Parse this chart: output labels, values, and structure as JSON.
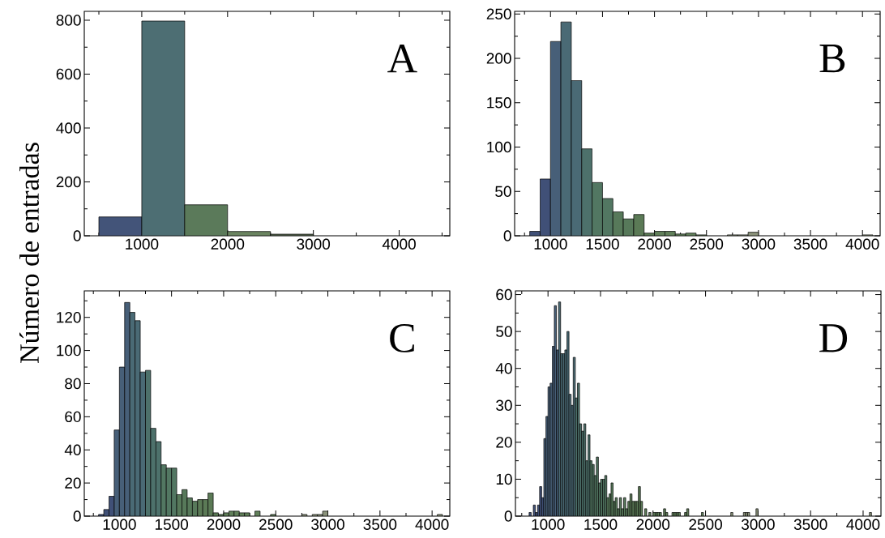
{
  "chart_data": [
    {
      "type": "histogram",
      "ylabel": "Número de entradas",
      "annotations": [
        "A"
      ],
      "bins": [
        500,
        1000,
        1500,
        2000,
        2500,
        3000,
        3500,
        4000,
        4500
      ],
      "values": [
        70,
        797,
        115,
        16,
        6,
        0,
        0,
        null
      ],
      "colors": [
        "#435479",
        "#4d6e73",
        "#5b7a5a",
        "#6a8460",
        "#55654d",
        "#8a927a",
        "#8a927a",
        "#8a927a"
      ],
      "xlim": [
        330,
        4590
      ],
      "ylim": [
        0,
        833
      ],
      "xticks": [
        {
          "value": 500,
          "label": null
        },
        1000,
        {
          "value": 1500,
          "label": null
        },
        2000,
        {
          "value": 2500,
          "label": null
        },
        3000,
        {
          "value": 3500,
          "label": null
        },
        4000,
        {
          "value": 4500,
          "label": null
        }
      ],
      "yticks": [
        0,
        {
          "value": 100,
          "label": null
        },
        200,
        {
          "value": 300,
          "label": null
        },
        400,
        {
          "value": 500,
          "label": null
        },
        600,
        {
          "value": 700,
          "label": null
        },
        800
      ]
    },
    {
      "type": "histogram",
      "annotations": [
        "B"
      ],
      "bins": [
        800,
        900,
        1000,
        1100,
        1200,
        1300,
        1400,
        1500,
        1600,
        1700,
        1800,
        1900,
        2000,
        2100,
        2200,
        2300,
        2400,
        2500,
        2600,
        2700,
        2800,
        2900,
        3000,
        3100,
        3200,
        3300,
        3400,
        3500,
        3600,
        3700,
        3800,
        3900,
        4000,
        4100
      ],
      "values": [
        5,
        64,
        219,
        241,
        175,
        98,
        60,
        42,
        27,
        19,
        24,
        3,
        5,
        5,
        2,
        3,
        1,
        0,
        0,
        1,
        1,
        4,
        0,
        0,
        0,
        0,
        0,
        0,
        0,
        0,
        0,
        0,
        1
      ],
      "colors": [
        "#405077",
        "#405077",
        "#475f78",
        "#4a6a75",
        "#4a6a75",
        "#4d716b",
        "#527762",
        "#527762",
        "#57795a",
        "#57795a",
        "#5b7a56",
        "#5b7a56",
        "#61805a",
        "#61805a",
        "#61805a",
        "#61805a",
        "#61805a",
        "#8a927a",
        "#8a927a",
        "#8a927a",
        "#8a927a",
        "#8a927a",
        "#8a927a",
        "#8a927a",
        "#8a927a",
        "#8a927a",
        "#8a927a",
        "#8a927a",
        "#8a927a",
        "#8a927a",
        "#8a927a",
        "#8a927a",
        "#8a927a"
      ],
      "xlim": [
        655,
        4170
      ],
      "ylim": [
        0,
        253
      ],
      "xticks": [
        {
          "value": 750,
          "label": null
        },
        1000,
        {
          "value": 1250,
          "label": null
        },
        1500,
        {
          "value": 1750,
          "label": null
        },
        2000,
        {
          "value": 2250,
          "label": null
        },
        2500,
        {
          "value": 2750,
          "label": null
        },
        3000,
        {
          "value": 3250,
          "label": null
        },
        3500,
        {
          "value": 3750,
          "label": null
        },
        4000
      ],
      "yticks": [
        0,
        {
          "value": 25,
          "label": null
        },
        50,
        {
          "value": 75,
          "label": null
        },
        100,
        {
          "value": 125,
          "label": null
        },
        150,
        {
          "value": 175,
          "label": null
        },
        200,
        {
          "value": 225,
          "label": null
        },
        250
      ]
    },
    {
      "type": "histogram",
      "annotations": [
        "C"
      ],
      "bins": [
        800,
        850,
        900,
        950,
        1000,
        1050,
        1100,
        1150,
        1200,
        1250,
        1300,
        1350,
        1400,
        1450,
        1500,
        1550,
        1600,
        1650,
        1700,
        1750,
        1800,
        1850,
        1900,
        1950,
        2000,
        2050,
        2100,
        2150,
        2200,
        2250,
        2300,
        2350,
        2400,
        2450,
        2500,
        2550,
        2600,
        2650,
        2700,
        2750,
        2800,
        2850,
        2900,
        2950,
        3000,
        3050,
        3100,
        3150,
        3200,
        3250,
        3300,
        3350,
        3400,
        3450,
        3500,
        3550,
        3600,
        3650,
        3700,
        3750,
        3800,
        3850,
        3900,
        3950,
        4000,
        4050,
        4100
      ],
      "values": [
        1,
        4,
        12,
        52,
        90,
        129,
        123,
        118,
        87,
        88,
        53,
        45,
        31,
        29,
        29,
        13,
        16,
        11,
        9,
        10,
        10,
        14,
        2,
        1,
        2,
        3,
        3,
        2,
        2,
        0,
        3,
        0,
        0,
        1,
        0,
        0,
        0,
        0,
        0,
        1,
        0,
        1,
        1,
        3,
        0,
        0,
        0,
        0,
        0,
        0,
        0,
        0,
        0,
        0,
        0,
        0,
        0,
        0,
        0,
        0,
        0,
        0,
        0,
        0,
        0,
        1
      ],
      "colors": [
        "#405077",
        "#405077",
        "#405077",
        "#475f78",
        "#475f78",
        "#475f78",
        "#4a6a75",
        "#4a6a75",
        "#4a6a75",
        "#4d716b",
        "#4d716b",
        "#4d716b",
        "#527762",
        "#527762",
        "#527762",
        "#57795a",
        "#57795a",
        "#57795a",
        "#57795a",
        "#5b7a56",
        "#5b7a56",
        "#5b7a56",
        "#5b7a56",
        "#5b7a56",
        "#61805a",
        "#61805a",
        "#61805a",
        "#61805a",
        "#61805a",
        "#61805a",
        "#61805a",
        "#61805a",
        "#61805a",
        "#61805a",
        "#8a927a",
        "#8a927a",
        "#8a927a",
        "#8a927a",
        "#8a927a",
        "#8a927a",
        "#8a927a",
        "#8a927a",
        "#8a927a",
        "#8a927a",
        "#8a927a",
        "#8a927a",
        "#8a927a",
        "#8a927a",
        "#8a927a",
        "#8a927a",
        "#8a927a",
        "#8a927a",
        "#8a927a",
        "#8a927a",
        "#8a927a",
        "#8a927a",
        "#8a927a",
        "#8a927a",
        "#8a927a",
        "#8a927a",
        "#8a927a",
        "#8a927a",
        "#8a927a",
        "#8a927a",
        "#8a927a",
        "#8a927a"
      ],
      "xlim": [
        663,
        4170
      ],
      "ylim": [
        0,
        136
      ],
      "xticks": [
        {
          "value": 750,
          "label": null
        },
        1000,
        {
          "value": 1250,
          "label": null
        },
        1500,
        {
          "value": 1750,
          "label": null
        },
        2000,
        {
          "value": 2250,
          "label": null
        },
        2500,
        {
          "value": 2750,
          "label": null
        },
        3000,
        {
          "value": 3250,
          "label": null
        },
        3500,
        {
          "value": 3750,
          "label": null
        },
        4000
      ],
      "yticks": [
        0,
        {
          "value": 10,
          "label": null
        },
        20,
        {
          "value": 30,
          "label": null
        },
        40,
        {
          "value": 50,
          "label": null
        },
        60,
        {
          "value": 70,
          "label": null
        },
        80,
        {
          "value": 90,
          "label": null
        },
        100,
        {
          "value": 110,
          "label": null
        },
        120,
        {
          "value": 130,
          "label": null
        }
      ]
    },
    {
      "type": "histogram",
      "annotations": [
        "D"
      ],
      "bins": [
        820,
        840,
        860,
        880,
        900,
        920,
        940,
        960,
        980,
        1000,
        1020,
        1040,
        1060,
        1080,
        1100,
        1120,
        1140,
        1160,
        1180,
        1200,
        1220,
        1240,
        1260,
        1280,
        1300,
        1320,
        1340,
        1360,
        1380,
        1400,
        1420,
        1440,
        1460,
        1480,
        1500,
        1520,
        1540,
        1560,
        1580,
        1600,
        1620,
        1640,
        1660,
        1680,
        1700,
        1720,
        1740,
        1760,
        1780,
        1800,
        1820,
        1840,
        1860,
        1880,
        1900,
        1920,
        1940,
        1960,
        1980,
        2000,
        2020,
        2040,
        2060,
        2080,
        2100,
        2120,
        2140,
        2160,
        2180,
        2200,
        2220,
        2240,
        2260,
        2280,
        2300,
        2320,
        2340,
        2360,
        2380,
        2400,
        2420,
        2440,
        2460,
        2480,
        2500,
        2520,
        2540,
        2560,
        2580,
        2600,
        2620,
        2640,
        2660,
        2680,
        2700,
        2720,
        2740,
        2760,
        2780,
        2800,
        2820,
        2840,
        2860,
        2880,
        2900,
        2920,
        2940,
        2960,
        2980,
        3000,
        3020,
        3040,
        3060,
        3080,
        3100,
        3120,
        3140,
        3160,
        3180,
        3200,
        3220,
        3240,
        3260,
        3280,
        3300,
        3320,
        3340,
        3360,
        3380,
        3400,
        3420,
        3440,
        3460,
        3480,
        3500,
        3520,
        3540,
        3560,
        3580,
        3600,
        3620,
        3640,
        3660,
        3680,
        3700,
        3720,
        3740,
        3760,
        3780,
        3800,
        3820,
        3840,
        3860,
        3880,
        3900,
        3920,
        3940,
        3960,
        3980,
        4000,
        4020,
        4040,
        4060,
        4080
      ],
      "values": [
        1,
        0,
        3,
        1,
        3,
        8,
        5,
        21,
        27,
        35,
        36,
        46,
        57,
        45,
        58,
        44,
        44,
        45,
        50,
        33,
        30,
        43,
        32,
        36,
        25,
        23,
        25,
        15,
        22,
        15,
        14,
        11,
        16,
        9,
        10,
        10,
        11,
        5,
        6,
        9,
        4,
        5,
        2,
        5,
        2,
        5,
        2,
        4,
        6,
        4,
        4,
        4,
        8,
        4,
        0,
        2,
        0,
        1,
        0,
        1,
        1,
        1,
        1,
        0,
        2,
        1,
        0,
        0,
        1,
        1,
        1,
        1,
        0,
        0,
        1,
        2,
        0,
        0,
        0,
        0,
        0,
        0,
        1,
        0,
        0,
        0,
        0,
        0,
        0,
        0,
        0,
        0,
        0,
        0,
        0,
        0,
        1,
        0,
        0,
        0,
        0,
        0,
        1,
        1,
        1,
        0,
        0,
        0,
        2,
        0,
        0,
        0,
        0,
        0,
        0,
        0,
        0,
        0,
        0,
        0,
        0,
        0,
        0,
        0,
        0,
        0,
        0,
        0,
        0,
        0,
        0,
        0,
        0,
        0,
        0,
        0,
        0,
        0,
        0,
        0,
        0,
        0,
        0,
        0,
        0,
        0,
        0,
        0,
        0,
        0,
        0,
        0,
        0,
        0,
        0,
        0,
        0,
        0,
        0,
        0,
        0,
        0,
        1
      ],
      "colors": [
        "#405077",
        "#405077",
        "#405077",
        "#405077",
        "#405077",
        "#405077",
        "#405077",
        "#475f78",
        "#475f78",
        "#475f78",
        "#475f78",
        "#475f78",
        "#475f78",
        "#475f78",
        "#4a6a75",
        "#4a6a75",
        "#4a6a75",
        "#4a6a75",
        "#4a6a75",
        "#4a6a75",
        "#4a6a75",
        "#4a6a75",
        "#4d716b",
        "#4d716b",
        "#4d716b",
        "#4d716b",
        "#4d716b",
        "#4d716b",
        "#4d716b",
        "#527762",
        "#527762",
        "#527762",
        "#527762",
        "#527762",
        "#527762",
        "#527762",
        "#527762",
        "#57795a",
        "#57795a",
        "#57795a",
        "#57795a",
        "#57795a",
        "#57795a",
        "#57795a",
        "#57795a",
        "#57795a",
        "#57795a",
        "#5b7a56",
        "#5b7a56",
        "#5b7a56",
        "#5b7a56",
        "#5b7a56",
        "#5b7a56",
        "#5b7a56",
        "#5b7a56",
        "#5b7a56",
        "#5b7a56",
        "#5b7a56",
        "#5b7a56",
        "#61805a",
        "#61805a",
        "#61805a",
        "#61805a",
        "#61805a",
        "#61805a",
        "#61805a",
        "#61805a",
        "#61805a",
        "#61805a",
        "#61805a",
        "#61805a",
        "#61805a",
        "#61805a",
        "#61805a",
        "#61805a",
        "#61805a",
        "#61805a",
        "#61805a",
        "#61805a",
        "#61805a",
        "#61805a",
        "#61805a",
        "#61805a",
        "#61805a",
        "#8a927a",
        "#8a927a",
        "#8a927a",
        "#8a927a",
        "#8a927a",
        "#8a927a",
        "#8a927a",
        "#8a927a",
        "#8a927a",
        "#8a927a",
        "#8a927a",
        "#8a927a",
        "#8a927a",
        "#8a927a",
        "#8a927a",
        "#8a927a",
        "#8a927a",
        "#8a927a",
        "#8a927a",
        "#8a927a",
        "#8a927a",
        "#8a927a",
        "#8a927a",
        "#8a927a",
        "#8a927a",
        "#8a927a",
        "#8a927a",
        "#8a927a",
        "#8a927a",
        "#8a927a",
        "#8a927a",
        "#8a927a",
        "#8a927a",
        "#8a927a",
        "#8a927a",
        "#8a927a",
        "#8a927a",
        "#8a927a",
        "#8a927a",
        "#8a927a",
        "#8a927a",
        "#8a927a",
        "#8a927a",
        "#8a927a",
        "#8a927a",
        "#8a927a",
        "#8a927a",
        "#8a927a",
        "#8a927a",
        "#8a927a",
        "#8a927a",
        "#8a927a",
        "#8a927a",
        "#8a927a",
        "#8a927a",
        "#8a927a",
        "#8a927a",
        "#8a927a",
        "#8a927a",
        "#8a927a",
        "#8a927a",
        "#8a927a",
        "#8a927a",
        "#8a927a",
        "#8a927a",
        "#8a927a",
        "#8a927a",
        "#8a927a",
        "#8a927a",
        "#8a927a",
        "#8a927a",
        "#8a927a",
        "#8a927a",
        "#8a927a",
        "#8a927a",
        "#8a927a",
        "#8a927a",
        "#8a927a",
        "#8a927a"
      ],
      "xlim": [
        690,
        4170
      ],
      "ylim": [
        0,
        61
      ],
      "xticks": [
        {
          "value": 750,
          "label": null
        },
        1000,
        {
          "value": 1250,
          "label": null
        },
        1500,
        {
          "value": 1750,
          "label": null
        },
        2000,
        {
          "value": 2250,
          "label": null
        },
        2500,
        {
          "value": 2750,
          "label": null
        },
        3000,
        {
          "value": 3250,
          "label": null
        },
        3500,
        {
          "value": 3750,
          "label": null
        },
        4000
      ],
      "yticks": [
        0,
        {
          "value": 5,
          "label": null
        },
        10,
        {
          "value": 15,
          "label": null
        },
        20,
        {
          "value": 25,
          "label": null
        },
        30,
        {
          "value": 35,
          "label": null
        },
        40,
        {
          "value": 45,
          "label": null
        },
        50,
        {
          "value": 55,
          "label": null
        },
        60
      ]
    }
  ]
}
